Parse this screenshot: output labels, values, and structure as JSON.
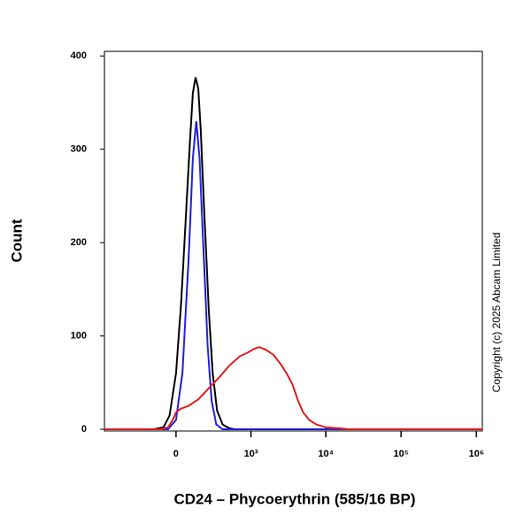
{
  "chart_data": {
    "type": "line",
    "ylabel": "Count",
    "xlabel": "CD24 – Phycoerythrin (585/16 BP)",
    "annotation": "Copyright (c) 2025 Abcam Limited",
    "xscale": "biexponential",
    "xlim": [
      -900,
      1200000
    ],
    "ylim": [
      0,
      405
    ],
    "xticks": [
      0,
      {
        "value": 1000,
        "label": "10³"
      },
      {
        "value": 10000,
        "label": "10⁴"
      },
      {
        "value": 100000,
        "label": "10⁵"
      },
      {
        "value": 1000000,
        "label": "10⁶"
      }
    ],
    "yticks": [
      0,
      100,
      200,
      300,
      400
    ],
    "series": [
      {
        "color": "#000000",
        "x": [
          -900,
          -150,
          -80,
          -40,
          0,
          30,
          60,
          90,
          110,
          130,
          150,
          170,
          200,
          240,
          280,
          330,
          400,
          500,
          600,
          1200000
        ],
        "values": [
          0,
          0,
          2,
          15,
          60,
          130,
          220,
          310,
          360,
          377,
          365,
          320,
          230,
          130,
          60,
          20,
          5,
          1,
          0,
          0
        ]
      },
      {
        "color": "#2020e0",
        "x": [
          -900,
          -50,
          0,
          40,
          80,
          110,
          135,
          160,
          190,
          230,
          270,
          320,
          400,
          1200000
        ],
        "values": [
          0,
          0,
          10,
          60,
          180,
          290,
          330,
          290,
          200,
          90,
          30,
          5,
          0,
          0
        ]
      },
      {
        "color": "#e02020",
        "x": [
          -900,
          -100,
          -50,
          -20,
          0,
          30,
          80,
          150,
          250,
          350,
          500,
          700,
          900,
          1100,
          1300,
          1600,
          2000,
          2500,
          3000,
          3600,
          4300,
          5000,
          6000,
          7500,
          10000,
          15000,
          20000,
          1200000
        ],
        "values": [
          0,
          0,
          2,
          10,
          18,
          22,
          25,
          32,
          45,
          55,
          68,
          78,
          82,
          86,
          88,
          85,
          80,
          70,
          60,
          48,
          30,
          18,
          10,
          5,
          2,
          1,
          0,
          0
        ]
      }
    ]
  }
}
